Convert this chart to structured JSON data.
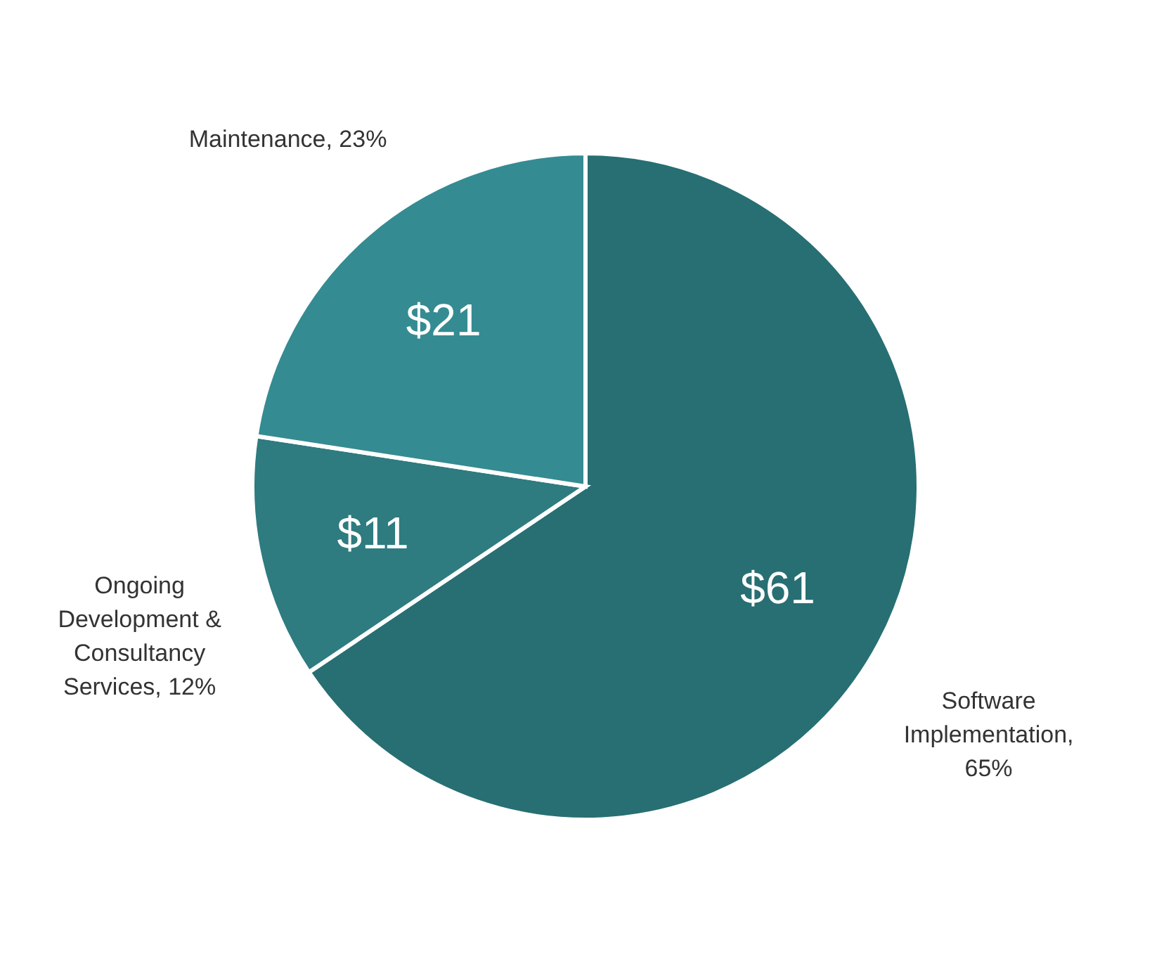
{
  "chart_data": {
    "type": "pie",
    "categories": [
      "Software Implementation, 65%",
      "Ongoing Development & Consultancy Services, 12%",
      "Maintenance, 23%"
    ],
    "values": [
      61,
      11,
      21
    ],
    "value_labels": [
      "$61",
      "$11",
      "$21"
    ],
    "colors": [
      "#276f73",
      "#2e7b80",
      "#358b92"
    ]
  }
}
